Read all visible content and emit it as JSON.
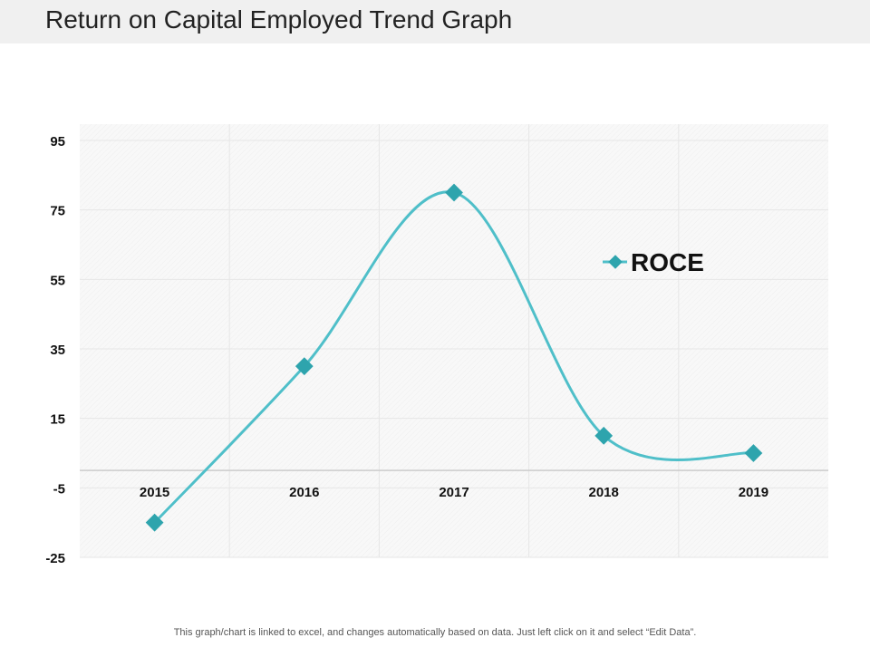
{
  "page": {
    "title": "Return on Capital Employed Trend Graph",
    "footer": "This graph/chart is linked to excel, and changes automatically based on data. Just left click on it and select “Edit Data”."
  },
  "colors": {
    "series": "#4fbfc9",
    "marker": "#2ea4ad",
    "plot_bg": "#f7f7f7",
    "grid": "#e6e6e6",
    "zero_line": "#cccccc"
  },
  "chart_data": {
    "type": "line",
    "smooth": true,
    "categories": [
      "2015",
      "2016",
      "2017",
      "2018",
      "2019"
    ],
    "series": [
      {
        "name": "ROCE",
        "values": [
          -15,
          30,
          80,
          10,
          5
        ]
      }
    ],
    "yticks": [
      95,
      75,
      55,
      35,
      15,
      -5,
      -25
    ],
    "ylim": [
      -25,
      95
    ],
    "grid": true,
    "legend": "right",
    "title": "",
    "xlabel": "",
    "ylabel": ""
  }
}
